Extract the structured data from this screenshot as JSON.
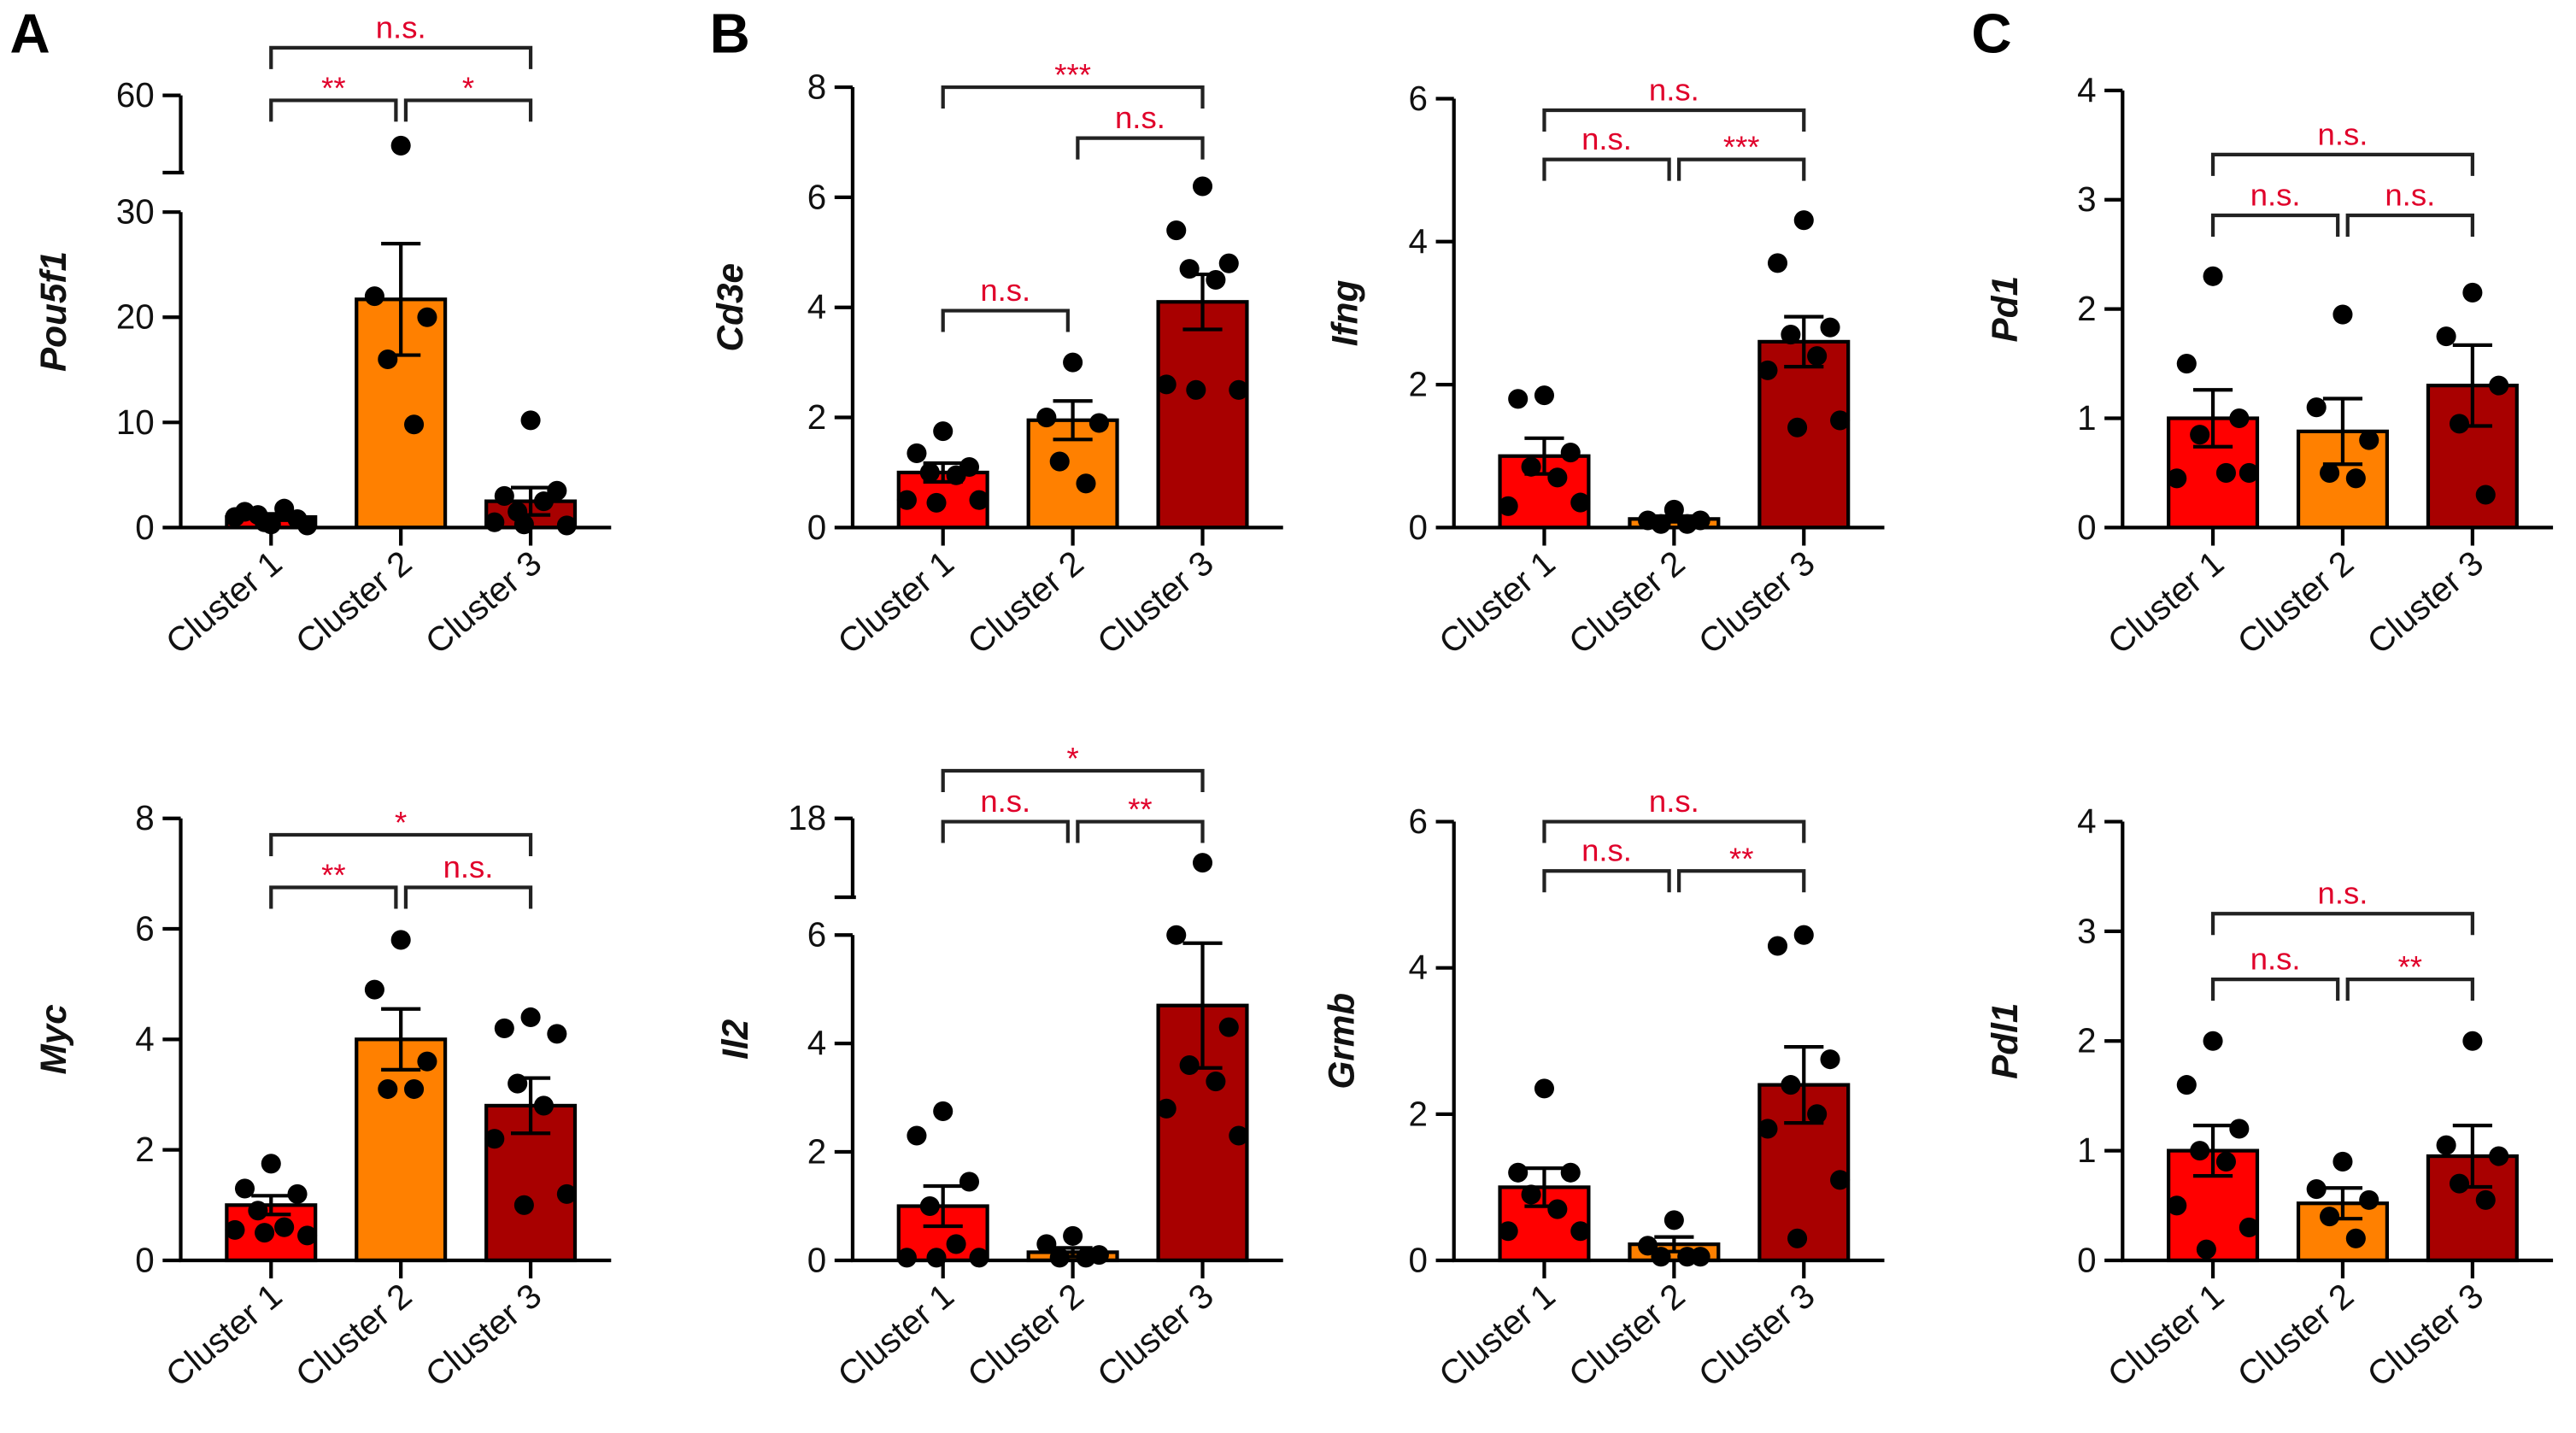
{
  "panel_letters": [
    "A",
    "B",
    "C"
  ],
  "colors": {
    "cluster1": "#ff0000",
    "cluster2": "#ff8000",
    "cluster3": "#a80000",
    "stat": "#e0002a",
    "axis": "#000000"
  },
  "chart_data": [
    {
      "type": "bar",
      "ylabel": "Pou5f1",
      "categories": [
        "Cluster 1",
        "Cluster 2",
        "Cluster 3"
      ],
      "y_axis": {
        "segments": [
          {
            "min": 0,
            "max": 30,
            "ticks": [
              "0",
              "10",
              "20",
              "30"
            ]
          },
          {
            "min": 40,
            "max": 60,
            "ticks": [
              "60"
            ]
          }
        ]
      },
      "means": [
        1.0,
        21.7,
        2.5
      ],
      "sem": [
        0.3,
        5.3,
        1.3
      ],
      "points": [
        [
          0.3,
          1.5,
          0.8,
          1.2,
          1.8,
          1.0,
          0.2,
          0.5
        ],
        [
          47,
          22,
          20,
          16,
          9.8
        ],
        [
          10.2,
          3.0,
          3.5,
          1.5,
          2.5,
          0.5,
          0.2,
          0.3
        ]
      ],
      "comparisons": [
        {
          "groups": [
            1,
            3
          ],
          "label": "n.s."
        },
        {
          "groups": [
            1,
            2
          ],
          "label": "**"
        },
        {
          "groups": [
            2,
            3
          ],
          "label": "*"
        }
      ]
    },
    {
      "type": "bar",
      "ylabel": "Cd3e",
      "categories": [
        "Cluster 1",
        "Cluster 2",
        "Cluster 3"
      ],
      "y_axis": {
        "segments": [
          {
            "min": 0,
            "max": 8,
            "ticks": [
              "0",
              "2",
              "4",
              "6",
              "8"
            ]
          }
        ]
      },
      "means": [
        1.0,
        1.95,
        4.1
      ],
      "sem": [
        0.17,
        0.35,
        0.5
      ],
      "points": [
        [
          1.75,
          1.35,
          1.1,
          1.0,
          0.95,
          0.5,
          0.5,
          0.45
        ],
        [
          3.0,
          2.0,
          1.9,
          1.2,
          0.8
        ],
        [
          6.2,
          5.4,
          4.8,
          4.7,
          4.5,
          2.6,
          2.5,
          2.5
        ]
      ],
      "comparisons": [
        {
          "groups": [
            1,
            3
          ],
          "label": "***"
        },
        {
          "groups": [
            1,
            2
          ],
          "label": "n.s."
        },
        {
          "groups": [
            2,
            3
          ],
          "label": "n.s."
        }
      ]
    },
    {
      "type": "bar",
      "ylabel": "Ifng",
      "categories": [
        "Cluster 1",
        "Cluster 2",
        "Cluster 3"
      ],
      "y_axis": {
        "segments": [
          {
            "min": 0,
            "max": 6,
            "ticks": [
              "0",
              "2",
              "4",
              "6"
            ]
          }
        ]
      },
      "means": [
        1.0,
        0.12,
        2.6
      ],
      "sem": [
        0.25,
        0.04,
        0.35
      ],
      "points": [
        [
          1.85,
          1.8,
          1.05,
          0.85,
          0.7,
          0.3,
          0.35
        ],
        [
          0.25,
          0.1,
          0.1,
          0.05,
          0.05
        ],
        [
          4.3,
          3.7,
          2.8,
          2.7,
          2.4,
          2.2,
          1.5,
          1.4
        ]
      ],
      "comparisons": [
        {
          "groups": [
            1,
            3
          ],
          "label": "n.s."
        },
        {
          "groups": [
            1,
            2
          ],
          "label": "n.s."
        },
        {
          "groups": [
            2,
            3
          ],
          "label": "***"
        }
      ]
    },
    {
      "type": "bar",
      "ylabel": "Pd1",
      "categories": [
        "Cluster 1",
        "Cluster 2",
        "Cluster 3"
      ],
      "y_axis": {
        "segments": [
          {
            "min": 0,
            "max": 4,
            "ticks": [
              "0",
              "1",
              "2",
              "3",
              "4"
            ]
          }
        ]
      },
      "means": [
        1.0,
        0.88,
        1.3
      ],
      "sem": [
        0.26,
        0.3,
        0.37
      ],
      "points": [
        [
          2.3,
          1.5,
          1.0,
          0.85,
          0.5,
          0.45,
          0.5
        ],
        [
          1.95,
          1.1,
          0.8,
          0.5,
          0.45
        ],
        [
          2.15,
          1.75,
          1.3,
          0.95,
          0.3
        ]
      ],
      "comparisons": [
        {
          "groups": [
            1,
            3
          ],
          "label": "n.s."
        },
        {
          "groups": [
            1,
            2
          ],
          "label": "n.s."
        },
        {
          "groups": [
            2,
            3
          ],
          "label": "n.s."
        }
      ]
    },
    {
      "type": "bar",
      "ylabel": "Myc",
      "categories": [
        "Cluster 1",
        "Cluster 2",
        "Cluster 3"
      ],
      "y_axis": {
        "segments": [
          {
            "min": 0,
            "max": 8,
            "ticks": [
              "0",
              "2",
              "4",
              "6",
              "8"
            ]
          }
        ]
      },
      "means": [
        1.0,
        4.0,
        2.8
      ],
      "sem": [
        0.17,
        0.55,
        0.5
      ],
      "points": [
        [
          1.75,
          1.3,
          1.2,
          0.9,
          0.6,
          0.55,
          0.45,
          0.5
        ],
        [
          5.8,
          4.9,
          3.6,
          3.1,
          3.1
        ],
        [
          4.4,
          4.2,
          4.1,
          3.2,
          2.8,
          2.2,
          1.2,
          1.0
        ]
      ],
      "comparisons": [
        {
          "groups": [
            1,
            3
          ],
          "label": "*"
        },
        {
          "groups": [
            1,
            2
          ],
          "label": "**"
        },
        {
          "groups": [
            2,
            3
          ],
          "label": "n.s."
        }
      ]
    },
    {
      "type": "bar",
      "ylabel": "Il2",
      "categories": [
        "Cluster 1",
        "Cluster 2",
        "Cluster 3"
      ],
      "y_axis": {
        "segments": [
          {
            "min": 0,
            "max": 6,
            "ticks": [
              "0",
              "2",
              "4",
              "6"
            ]
          },
          {
            "min": 10,
            "max": 18,
            "ticks": [
              "18"
            ]
          }
        ]
      },
      "means": [
        1.0,
        0.15,
        4.7
      ],
      "sem": [
        0.37,
        0.08,
        1.15
      ],
      "points": [
        [
          2.75,
          2.3,
          1.45,
          1.0,
          0.3,
          0.05,
          0.05,
          0.05
        ],
        [
          0.45,
          0.3,
          0.1,
          0.05,
          0.05
        ],
        [
          13.5,
          6.0,
          4.3,
          3.6,
          3.3,
          2.8,
          2.3
        ]
      ],
      "comparisons": [
        {
          "groups": [
            1,
            3
          ],
          "label": "*"
        },
        {
          "groups": [
            1,
            2
          ],
          "label": "n.s."
        },
        {
          "groups": [
            2,
            3
          ],
          "label": "**"
        }
      ]
    },
    {
      "type": "bar",
      "ylabel": "Grmb",
      "categories": [
        "Cluster 1",
        "Cluster 2",
        "Cluster 3"
      ],
      "y_axis": {
        "segments": [
          {
            "min": 0,
            "max": 6,
            "ticks": [
              "0",
              "2",
              "4",
              "6"
            ]
          }
        ]
      },
      "means": [
        1.0,
        0.22,
        2.4
      ],
      "sem": [
        0.26,
        0.1,
        0.52
      ],
      "points": [
        [
          2.35,
          1.2,
          1.2,
          0.9,
          0.7,
          0.4,
          0.4
        ],
        [
          0.55,
          0.2,
          0.05,
          0.05,
          0.05
        ],
        [
          4.45,
          4.3,
          2.75,
          2.4,
          2.0,
          1.8,
          1.1,
          0.3
        ]
      ],
      "comparisons": [
        {
          "groups": [
            1,
            3
          ],
          "label": "n.s."
        },
        {
          "groups": [
            1,
            2
          ],
          "label": "n.s."
        },
        {
          "groups": [
            2,
            3
          ],
          "label": "**"
        }
      ]
    },
    {
      "type": "bar",
      "ylabel": "Pdl1",
      "categories": [
        "Cluster 1",
        "Cluster 2",
        "Cluster 3"
      ],
      "y_axis": {
        "segments": [
          {
            "min": 0,
            "max": 4,
            "ticks": [
              "0",
              "1",
              "2",
              "3",
              "4"
            ]
          }
        ]
      },
      "means": [
        1.0,
        0.52,
        0.95
      ],
      "sem": [
        0.23,
        0.14,
        0.28
      ],
      "points": [
        [
          2.0,
          1.6,
          1.2,
          1.0,
          0.9,
          0.5,
          0.3,
          0.1
        ],
        [
          0.9,
          0.65,
          0.55,
          0.4,
          0.2
        ],
        [
          2.0,
          1.05,
          0.95,
          0.7,
          0.55
        ]
      ],
      "comparisons": [
        {
          "groups": [
            1,
            3
          ],
          "label": "n.s."
        },
        {
          "groups": [
            1,
            2
          ],
          "label": "n.s."
        },
        {
          "groups": [
            2,
            3
          ],
          "label": "**"
        }
      ]
    }
  ]
}
